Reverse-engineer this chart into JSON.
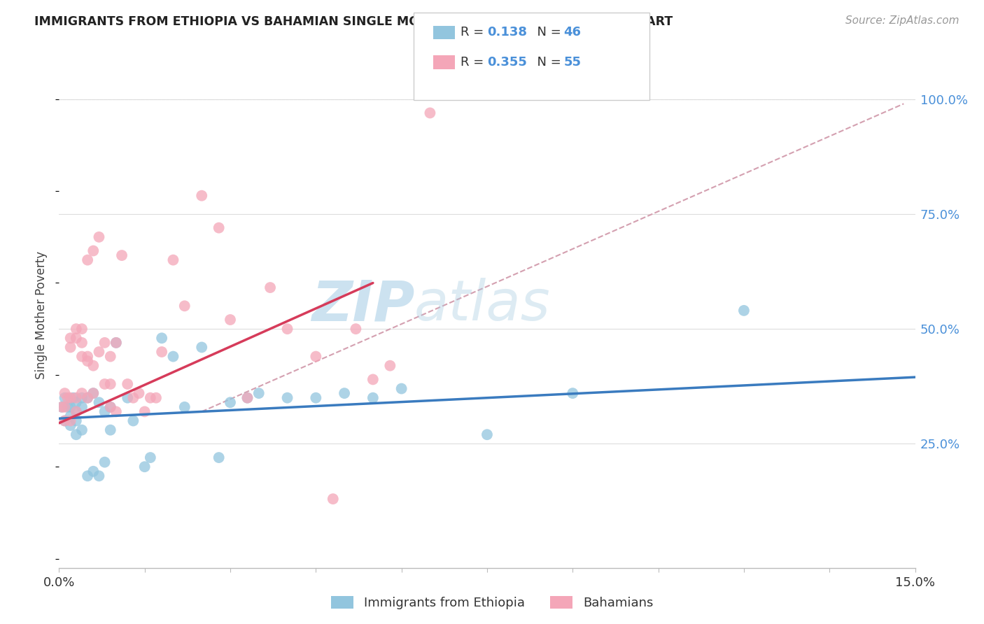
{
  "title": "IMMIGRANTS FROM ETHIOPIA VS BAHAMIAN SINGLE MOTHER POVERTY CORRELATION CHART",
  "source": "Source: ZipAtlas.com",
  "ylabel": "Single Mother Poverty",
  "right_yticks": [
    "100.0%",
    "75.0%",
    "50.0%",
    "25.0%"
  ],
  "right_ytick_vals": [
    1.0,
    0.75,
    0.5,
    0.25
  ],
  "xlim": [
    0.0,
    0.15
  ],
  "ylim": [
    -0.02,
    1.08
  ],
  "r1": 0.138,
  "n1": 46,
  "r2": 0.355,
  "n2": 55,
  "color_blue": "#92c5de",
  "color_pink": "#f4a6b8",
  "color_blue_line": "#3a7bbf",
  "color_pink_line": "#d63b5a",
  "color_diag_line": "#d4a0b0",
  "watermark_zip": "ZIP",
  "watermark_atlas": "atlas",
  "blue_points_x": [
    0.0005,
    0.001,
    0.001,
    0.0015,
    0.002,
    0.002,
    0.002,
    0.0025,
    0.003,
    0.003,
    0.003,
    0.003,
    0.004,
    0.004,
    0.004,
    0.005,
    0.005,
    0.006,
    0.006,
    0.007,
    0.007,
    0.008,
    0.008,
    0.009,
    0.009,
    0.01,
    0.012,
    0.013,
    0.015,
    0.016,
    0.018,
    0.02,
    0.022,
    0.025,
    0.028,
    0.03,
    0.033,
    0.035,
    0.04,
    0.045,
    0.05,
    0.055,
    0.06,
    0.075,
    0.09,
    0.12
  ],
  "blue_points_y": [
    0.33,
    0.35,
    0.3,
    0.33,
    0.33,
    0.31,
    0.29,
    0.35,
    0.34,
    0.32,
    0.3,
    0.27,
    0.35,
    0.33,
    0.28,
    0.35,
    0.18,
    0.36,
    0.19,
    0.34,
    0.18,
    0.32,
    0.21,
    0.33,
    0.28,
    0.47,
    0.35,
    0.3,
    0.2,
    0.22,
    0.48,
    0.44,
    0.33,
    0.46,
    0.22,
    0.34,
    0.35,
    0.36,
    0.35,
    0.35,
    0.36,
    0.35,
    0.37,
    0.27,
    0.36,
    0.54
  ],
  "pink_points_x": [
    0.0005,
    0.001,
    0.001,
    0.001,
    0.0015,
    0.002,
    0.002,
    0.002,
    0.002,
    0.003,
    0.003,
    0.003,
    0.003,
    0.004,
    0.004,
    0.004,
    0.004,
    0.005,
    0.005,
    0.005,
    0.005,
    0.006,
    0.006,
    0.006,
    0.007,
    0.007,
    0.008,
    0.008,
    0.009,
    0.009,
    0.009,
    0.01,
    0.01,
    0.011,
    0.012,
    0.013,
    0.014,
    0.015,
    0.016,
    0.017,
    0.018,
    0.02,
    0.022,
    0.025,
    0.028,
    0.03,
    0.033,
    0.037,
    0.04,
    0.045,
    0.048,
    0.052,
    0.055,
    0.058,
    0.065
  ],
  "pink_points_y": [
    0.33,
    0.36,
    0.33,
    0.3,
    0.35,
    0.48,
    0.46,
    0.35,
    0.3,
    0.5,
    0.48,
    0.35,
    0.32,
    0.5,
    0.47,
    0.44,
    0.36,
    0.65,
    0.44,
    0.43,
    0.35,
    0.67,
    0.42,
    0.36,
    0.7,
    0.45,
    0.47,
    0.38,
    0.44,
    0.38,
    0.33,
    0.47,
    0.32,
    0.66,
    0.38,
    0.35,
    0.36,
    0.32,
    0.35,
    0.35,
    0.45,
    0.65,
    0.55,
    0.79,
    0.72,
    0.52,
    0.35,
    0.59,
    0.5,
    0.44,
    0.13,
    0.5,
    0.39,
    0.42,
    0.97
  ],
  "blue_line_x": [
    0.0,
    0.15
  ],
  "blue_line_y": [
    0.305,
    0.395
  ],
  "pink_line_x": [
    0.0,
    0.055
  ],
  "pink_line_y": [
    0.295,
    0.6
  ],
  "diag_line_x": [
    0.025,
    0.148
  ],
  "diag_line_y": [
    0.32,
    0.99
  ]
}
